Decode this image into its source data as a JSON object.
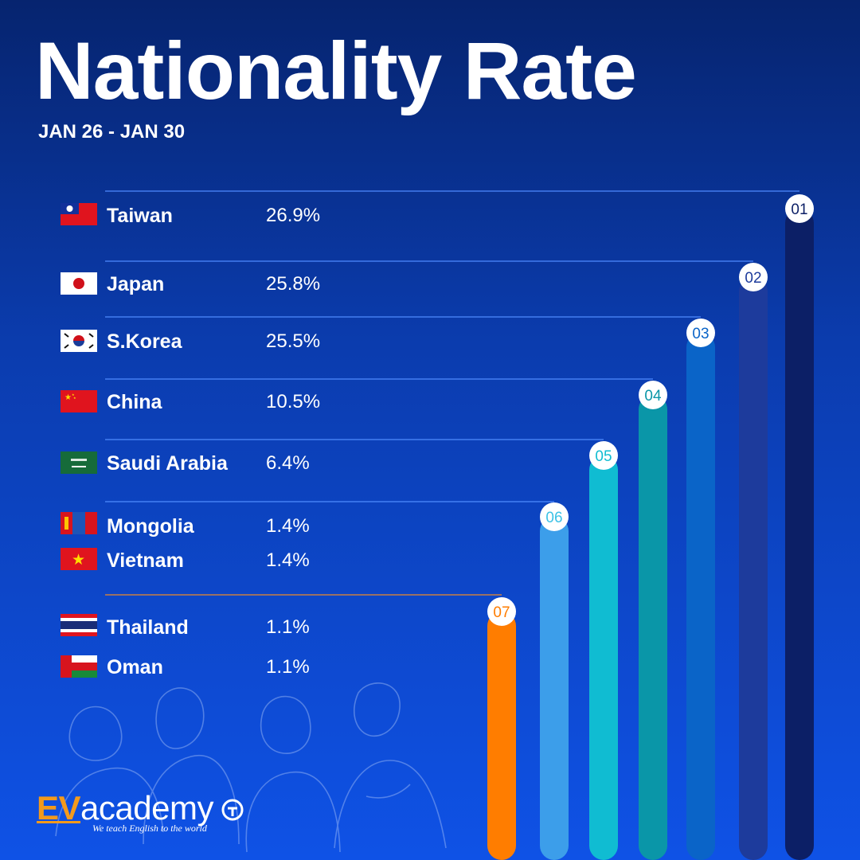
{
  "header": {
    "title": "Nationality Rate",
    "subtitle": "JAN 26 - JAN 30"
  },
  "rows": [
    {
      "country": "Taiwan",
      "percent": "26.9%",
      "flag": "taiwan-flag"
    },
    {
      "country": "Japan",
      "percent": "25.8%",
      "flag": "japan-flag"
    },
    {
      "country": "S.Korea",
      "percent": "25.5%",
      "flag": "south-korea-flag"
    },
    {
      "country": "China",
      "percent": "10.5%",
      "flag": "china-flag"
    },
    {
      "country": "Saudi Arabia",
      "percent": "6.4%",
      "flag": "saudi-arabia-flag"
    },
    {
      "country": "Mongolia",
      "percent": "1.4%",
      "flag": "mongolia-flag"
    },
    {
      "country": "Vietnam",
      "percent": "1.4%",
      "flag": "vietnam-flag"
    },
    {
      "country": "Thailand",
      "percent": "1.1%",
      "flag": "thailand-flag"
    },
    {
      "country": "Oman",
      "percent": "1.1%",
      "flag": "oman-flag"
    }
  ],
  "chart_data": {
    "type": "bar",
    "categories": [
      "01",
      "02",
      "03",
      "04",
      "05",
      "06",
      "07"
    ],
    "series": [
      {
        "name": "",
        "values": [
          26.9,
          25.8,
          25.5,
          10.5,
          6.4,
          1.4,
          1.1
        ]
      }
    ],
    "groups": [
      [
        "Taiwan"
      ],
      [
        "Japan"
      ],
      [
        "S.Korea"
      ],
      [
        "China"
      ],
      [
        "Saudi Arabia"
      ],
      [
        "Mongolia",
        "Vietnam"
      ],
      [
        "Thailand",
        "Oman"
      ]
    ],
    "bar_colors": [
      "#0c1f66",
      "#1d3b9c",
      "#0a64c8",
      "#0a96a8",
      "#10bcd2",
      "#3c9eea",
      "#ff7d00"
    ],
    "badge_text_colors": [
      "#0c1f66",
      "#1d3b9c",
      "#0a64c8",
      "#0a96a8",
      "#10bcd2",
      "#3cc2e6",
      "#ff7d00"
    ],
    "title": "",
    "xlabel": "",
    "ylabel": ""
  },
  "logo": {
    "brand_prefix": "EV",
    "brand_suffix": "academy",
    "tagline": "We teach English to the world"
  }
}
